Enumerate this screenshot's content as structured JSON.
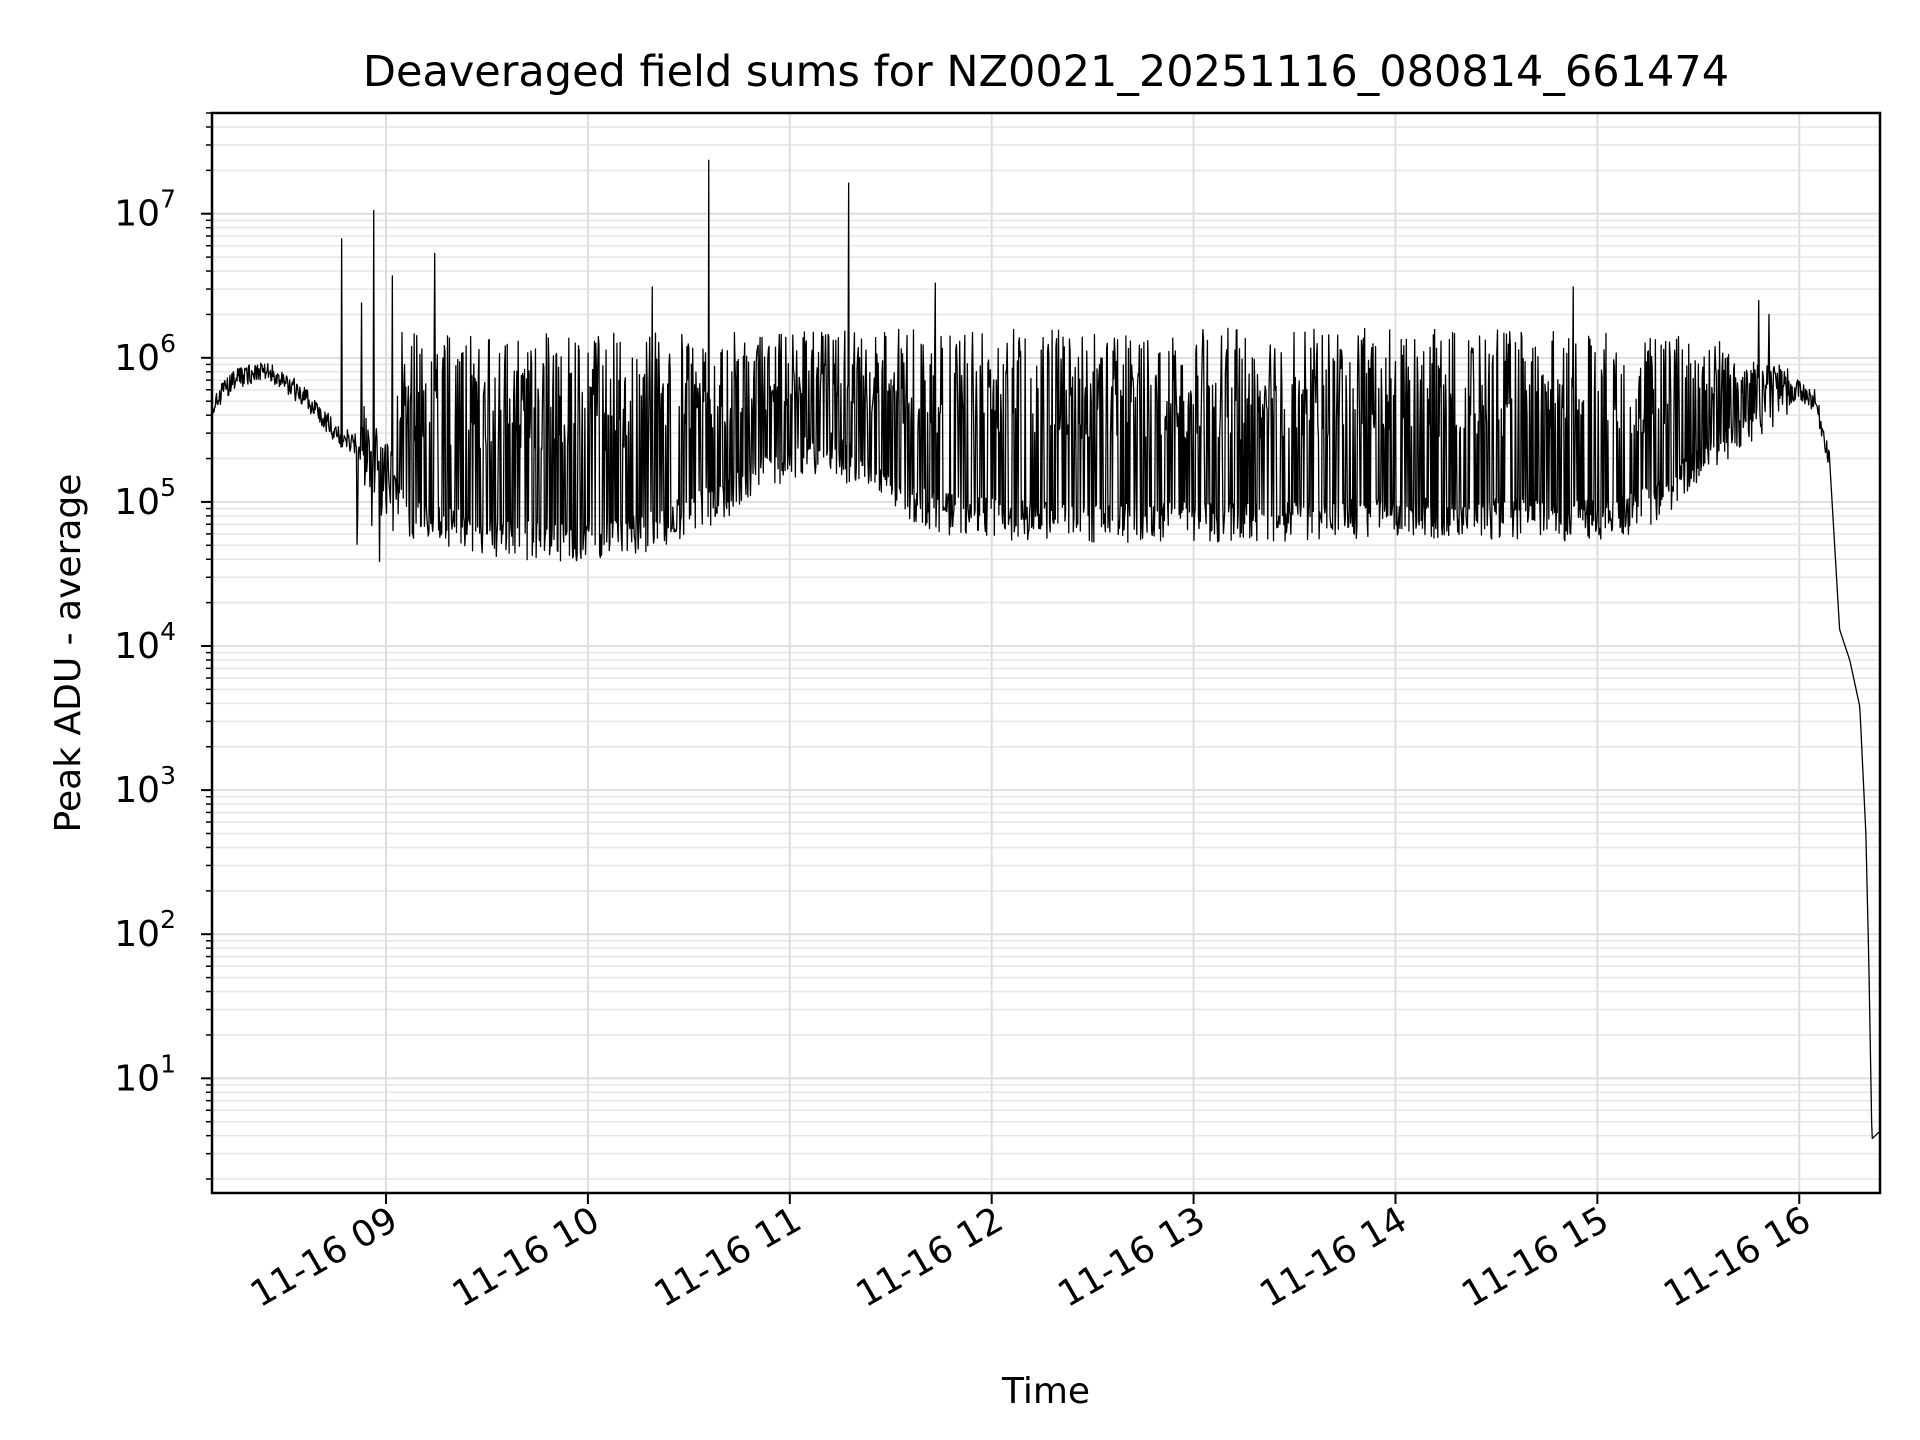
{
  "chart_data": {
    "type": "line",
    "title": "Deaveraged field sums for NZ0021_20251116_080814_661474",
    "xlabel": "Time",
    "ylabel": "Peak ADU - average",
    "yscale": "log",
    "ylim": [
      1.6,
      50000000
    ],
    "xlim_hours": [
      8.138,
      16.4
    ],
    "grid": true,
    "line_color": "#000000",
    "x_ticks": [
      {
        "value": 9,
        "label": "11-16 09"
      },
      {
        "value": 10,
        "label": "11-16 10"
      },
      {
        "value": 11,
        "label": "11-16 11"
      },
      {
        "value": 12,
        "label": "11-16 12"
      },
      {
        "value": 13,
        "label": "11-16 13"
      },
      {
        "value": 14,
        "label": "11-16 14"
      },
      {
        "value": 15,
        "label": "11-16 15"
      },
      {
        "value": 16,
        "label": "11-16 16"
      }
    ],
    "y_ticks": [
      {
        "value": 10,
        "base": "10",
        "exp": "1"
      },
      {
        "value": 100,
        "base": "10",
        "exp": "2"
      },
      {
        "value": 1000,
        "base": "10",
        "exp": "3"
      },
      {
        "value": 10000,
        "base": "10",
        "exp": "4"
      },
      {
        "value": 100000,
        "base": "10",
        "exp": "5"
      },
      {
        "value": 1000000,
        "base": "10",
        "exp": "6"
      },
      {
        "value": 10000000,
        "base": "10",
        "exp": "7"
      }
    ],
    "baseline": [
      [
        8.14,
        480000
      ],
      [
        8.25,
        700000
      ],
      [
        8.35,
        800000
      ],
      [
        8.45,
        750000
      ],
      [
        8.55,
        600000
      ],
      [
        8.65,
        450000
      ],
      [
        8.75,
        300000
      ],
      [
        8.85,
        250000
      ],
      [
        8.95,
        200000
      ],
      [
        9.05,
        110000
      ],
      [
        9.15,
        80000
      ],
      [
        9.3,
        75000
      ],
      [
        9.5,
        65000
      ],
      [
        9.7,
        60000
      ],
      [
        9.9,
        58000
      ],
      [
        10.1,
        60000
      ],
      [
        10.3,
        70000
      ],
      [
        10.5,
        90000
      ],
      [
        10.7,
        120000
      ],
      [
        10.9,
        180000
      ],
      [
        11.0,
        220000
      ],
      [
        11.2,
        250000
      ],
      [
        11.4,
        160000
      ],
      [
        11.6,
        110000
      ],
      [
        11.8,
        90000
      ],
      [
        12.0,
        85000
      ],
      [
        12.3,
        80000
      ],
      [
        12.6,
        80000
      ],
      [
        13.0,
        80000
      ],
      [
        13.5,
        82000
      ],
      [
        14.0,
        85000
      ],
      [
        14.5,
        85000
      ],
      [
        14.9,
        82000
      ],
      [
        15.1,
        85000
      ],
      [
        15.3,
        110000
      ],
      [
        15.5,
        200000
      ],
      [
        15.7,
        350000
      ],
      [
        15.85,
        480000
      ],
      [
        16.0,
        600000
      ],
      [
        16.08,
        500000
      ],
      [
        16.15,
        200000
      ],
      [
        16.2,
        13000
      ],
      [
        16.25,
        8000
      ],
      [
        16.3,
        3800
      ],
      [
        16.33,
        500
      ],
      [
        16.345,
        60
      ],
      [
        16.36,
        3.8
      ],
      [
        16.4,
        4.3
      ]
    ],
    "envelope": [
      [
        9.05,
        1500000
      ],
      [
        10.5,
        1550000
      ],
      [
        11.0,
        1500000
      ],
      [
        11.3,
        1600000
      ],
      [
        12.0,
        1600000
      ],
      [
        13.0,
        1600000
      ],
      [
        14.0,
        1600000
      ],
      [
        15.0,
        1550000
      ],
      [
        15.3,
        1500000
      ],
      [
        15.6,
        1400000
      ],
      [
        15.8,
        900000
      ]
    ],
    "oscillation_range_hours": [
      8.85,
      15.95
    ],
    "spikes": [
      {
        "x": 8.78,
        "y": 6700000
      },
      {
        "x": 8.88,
        "y": 2400000
      },
      {
        "x": 8.94,
        "y": 10500000
      },
      {
        "x": 9.03,
        "y": 3700000
      },
      {
        "x": 9.24,
        "y": 5300000
      },
      {
        "x": 10.32,
        "y": 3100000
      },
      {
        "x": 10.6,
        "y": 23500000
      },
      {
        "x": 11.29,
        "y": 16300000
      },
      {
        "x": 11.72,
        "y": 3300000
      },
      {
        "x": 14.88,
        "y": 3100000
      },
      {
        "x": 15.8,
        "y": 2500000
      },
      {
        "x": 15.85,
        "y": 2000000
      }
    ]
  }
}
